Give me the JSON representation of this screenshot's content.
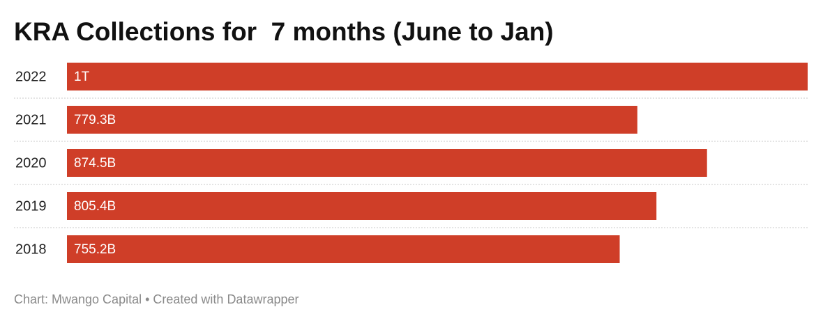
{
  "chart_data": {
    "type": "bar",
    "orientation": "horizontal",
    "title": "KRA Collections for  7 months (June to Jan)",
    "categories": [
      "2022",
      "2021",
      "2020",
      "2019",
      "2018"
    ],
    "values": [
      1012,
      779.3,
      874.5,
      805.4,
      755.2
    ],
    "value_labels": [
      "1T",
      "779.3B",
      "874.5B",
      "805.4B",
      "755.2B"
    ],
    "color": "#cf3e28",
    "xlim": [
      0,
      1012
    ],
    "source": "Chart: Mwango Capital • Created with Datawrapper"
  }
}
